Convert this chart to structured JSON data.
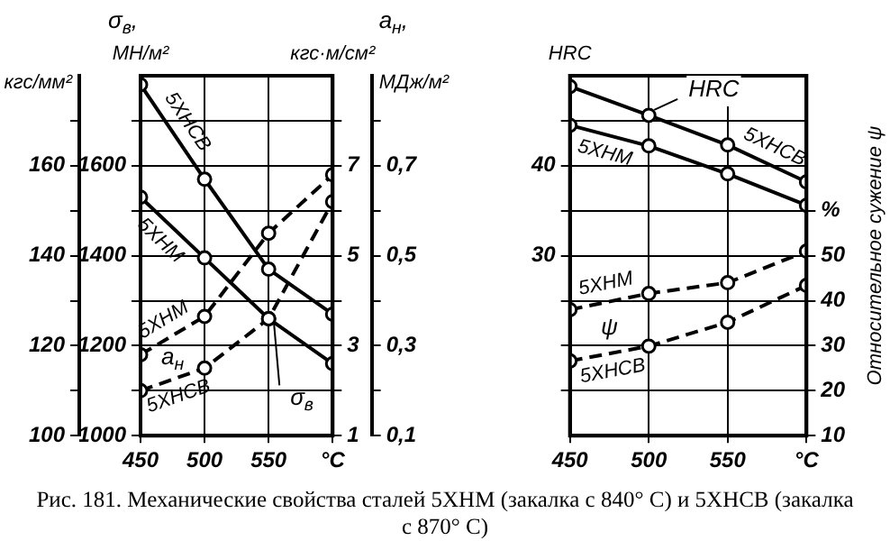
{
  "chart_data": [
    {
      "type": "line",
      "title": "Рис. 181. Механические свойства сталей 5ХНМ (закалка с 840° С) и 5ХНСВ (закалка с 870° С)",
      "x": [
        450,
        500,
        550,
        600
      ],
      "xlim": [
        450,
        600
      ],
      "xticks": [
        450,
        500,
        550,
        {
          "value": 600,
          "label": "°C"
        }
      ],
      "ylabel": "МН/м²",
      "ylim": [
        1000,
        1800
      ],
      "yticks": [
        1000,
        {
          "value": 1100,
          "label": null
        },
        1200,
        {
          "value": 1300,
          "label": null
        },
        1400,
        {
          "value": 1500,
          "label": null
        },
        1600,
        {
          "value": 1700,
          "label": null
        }
      ],
      "y2label": "кгс·м/см²",
      "y2lim": [
        1,
        9
      ],
      "y2ticks": [
        1,
        {
          "value": 2,
          "label": null
        },
        3,
        {
          "value": 4,
          "label": null
        },
        5,
        {
          "value": 6,
          "label": null
        },
        7,
        {
          "value": 8,
          "label": null
        }
      ],
      "y3label": "кгс/мм²",
      "y3lim": [
        100,
        180
      ],
      "y3ticks": [
        100,
        {
          "value": 110,
          "label": null
        },
        120,
        {
          "value": 130,
          "label": null
        },
        140,
        {
          "value": 150,
          "label": null
        },
        160,
        {
          "value": 170,
          "label": null
        }
      ],
      "grid": true,
      "marker": "circle",
      "annotations": [
        "σ$_{в}$,",
        "a$_{н}$,",
        "МДж/м²",
        "0,1",
        "0,3",
        "0,5",
        "0,7",
        "a$_{н}$",
        {
          "text": "σ$_{в}$",
          "x": 550,
          "y": 1260
        }
      ],
      "series": [
        {
          "name": "5ХНСВ",
          "color": "#000000",
          "line_style": "solid",
          "values": [
            1780,
            1570,
            1370,
            1270
          ]
        },
        {
          "name": "5ХНМ",
          "color": "#000000",
          "line_style": "solid",
          "values": [
            1530,
            1395,
            1260,
            1160
          ]
        },
        {
          "name": "5ХНМ",
          "color": "#000000",
          "axis": "y2",
          "line_style": "dashed",
          "values": [
            2.8,
            3.65,
            5.5,
            6.8
          ]
        },
        {
          "name": "5ХНСВ",
          "color": "#000000",
          "axis": "y2",
          "line_style": "dashed",
          "values": [
            2,
            2.5,
            3.6,
            6.2
          ]
        }
      ]
    },
    {
      "type": "line",
      "x": [
        450,
        500,
        550,
        600
      ],
      "xlim": [
        450,
        600
      ],
      "xticks": [
        450,
        500,
        550,
        {
          "value": 600,
          "label": "°C"
        }
      ],
      "ylabel": "HRC",
      "ylim": [
        10,
        50
      ],
      "yticks": [
        {
          "value": 15,
          "label": null
        },
        {
          "value": 20,
          "label": null
        },
        {
          "value": 25,
          "label": null
        },
        30,
        {
          "value": 35,
          "label": null
        },
        40,
        {
          "value": 45,
          "label": null
        }
      ],
      "y2label": "Относительное сужение ψ",
      "y2lim": [
        10,
        90
      ],
      "y2ticks": [
        10,
        20,
        30,
        40,
        50,
        {
          "value": 60,
          "label": "%"
        }
      ],
      "grid": true,
      "marker": "circle",
      "annotations": [
        "ψ",
        {
          "text": "HRC",
          "x": 500,
          "y": 45.6
        }
      ],
      "series": [
        {
          "name": "5ХНСВ",
          "color": "#000000",
          "line_style": "solid",
          "values": [
            48.8,
            45.6,
            42.3,
            38.2
          ]
        },
        {
          "name": "5ХНМ",
          "color": "#000000",
          "line_style": "solid",
          "values": [
            44.5,
            42.2,
            39.1,
            35.6
          ]
        },
        {
          "name": "5ХНМ",
          "color": "#000000",
          "axis": "y2",
          "line_style": "dashed",
          "values": [
            38,
            41.6,
            44,
            51
          ]
        },
        {
          "name": "5ХНСВ",
          "color": "#000000",
          "axis": "y2",
          "line_style": "dashed",
          "values": [
            26.6,
            29.9,
            35.2,
            43.4
          ]
        }
      ]
    }
  ]
}
